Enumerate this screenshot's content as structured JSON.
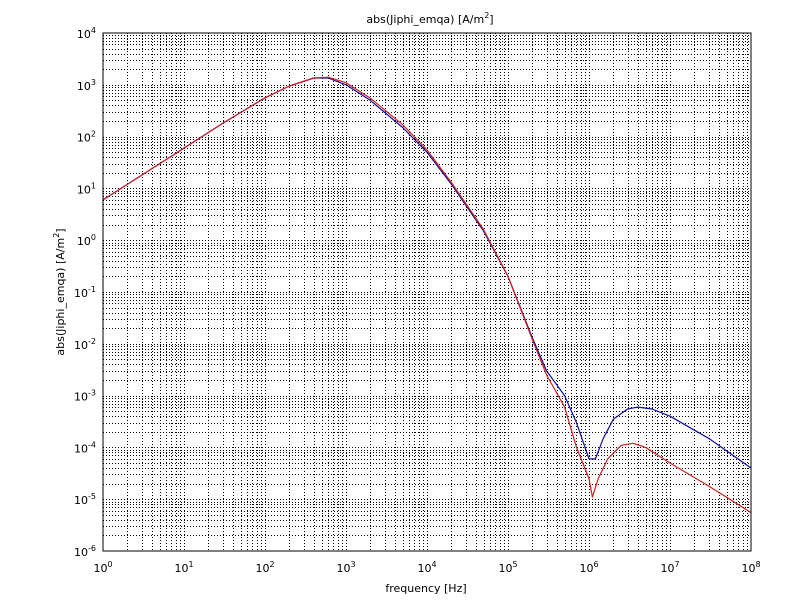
{
  "chart_data": {
    "type": "line",
    "title_base": "abs(Jiphi_emqa) [A/m",
    "title_sup": "2",
    "title_tail": "]",
    "xlabel": "frequency [Hz]",
    "ylabel_base": "abs(Jiphi_emqa) [A/m",
    "ylabel_sup": "2",
    "ylabel_tail": "]",
    "x_scale": "log",
    "y_scale": "log",
    "xlim": [
      1,
      100000000
    ],
    "ylim": [
      1e-06,
      10000
    ],
    "grid": true,
    "x_ticks": [
      {
        "base": "10",
        "exp": "0"
      },
      {
        "base": "10",
        "exp": "1"
      },
      {
        "base": "10",
        "exp": "2"
      },
      {
        "base": "10",
        "exp": "3"
      },
      {
        "base": "10",
        "exp": "4"
      },
      {
        "base": "10",
        "exp": "5"
      },
      {
        "base": "10",
        "exp": "6"
      },
      {
        "base": "10",
        "exp": "7"
      },
      {
        "base": "10",
        "exp": "8"
      }
    ],
    "y_ticks": [
      {
        "base": "10",
        "exp": "-6"
      },
      {
        "base": "10",
        "exp": "-5"
      },
      {
        "base": "10",
        "exp": "-4"
      },
      {
        "base": "10",
        "exp": "-3"
      },
      {
        "base": "10",
        "exp": "-2"
      },
      {
        "base": "10",
        "exp": "-1"
      },
      {
        "base": "10",
        "exp": "0"
      },
      {
        "base": "10",
        "exp": "1"
      },
      {
        "base": "10",
        "exp": "2"
      },
      {
        "base": "10",
        "exp": "3"
      },
      {
        "base": "10",
        "exp": "4"
      }
    ],
    "series": [
      {
        "color": "#1010a0",
        "x": [
          1,
          3,
          10,
          30,
          100,
          200,
          400,
          600,
          1000,
          2000,
          5000,
          10000,
          20000,
          50000,
          100000,
          200000,
          300000,
          500000,
          700000,
          1000000,
          1200000,
          1500000,
          2000000,
          3000000,
          4000000,
          6000000,
          10000000,
          30000000,
          100000000
        ],
        "y": [
          6,
          18,
          60,
          180,
          560,
          950,
          1350,
          1350,
          1000,
          500,
          150,
          50,
          12,
          1.5,
          0.2,
          0.013,
          0.003,
          0.001,
          0.0003,
          6e-05,
          6e-05,
          0.00015,
          0.00035,
          0.00055,
          0.0006,
          0.00055,
          0.0004,
          0.00015,
          4e-05
        ]
      },
      {
        "color": "#d02020",
        "x": [
          1,
          3,
          10,
          30,
          100,
          200,
          400,
          600,
          1000,
          2000,
          5000,
          10000,
          20000,
          50000,
          100000,
          200000,
          300000,
          500000,
          700000,
          1000000,
          1100000,
          1300000,
          1700000,
          2500000,
          3500000,
          5000000,
          10000000,
          30000000,
          100000000
        ],
        "y": [
          6,
          18,
          60,
          180,
          560,
          950,
          1350,
          1400,
          1100,
          550,
          170,
          55,
          13,
          1.6,
          0.2,
          0.012,
          0.0025,
          0.0006,
          0.0001,
          2.5e-05,
          1.1e-05,
          2.5e-05,
          6e-05,
          0.00011,
          0.00012,
          0.0001,
          5e-05,
          1.8e-05,
          5.5e-06
        ]
      }
    ]
  }
}
